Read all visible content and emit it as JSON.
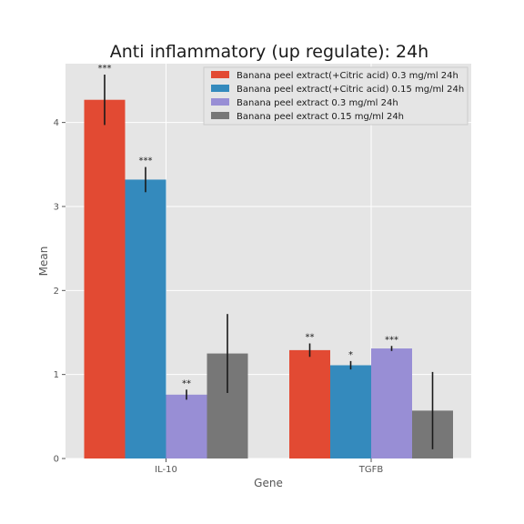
{
  "chart_data": {
    "type": "bar",
    "title": "Anti inflammatory (up regulate): 24h",
    "xlabel": "Gene",
    "ylabel": "Mean",
    "categories": [
      "IL-10",
      "TGFB"
    ],
    "ylim": [
      0,
      4.7
    ],
    "yticks": [
      0,
      1,
      2,
      3,
      4
    ],
    "grid": true,
    "legend_position": "top-right",
    "series": [
      {
        "name": "Banana peel extract(+Citric acid) 0.3 mg/ml 24h",
        "color": "#E24A33",
        "values": [
          4.27,
          1.29
        ],
        "errors": [
          0.3,
          0.08
        ],
        "significance": [
          "***",
          "**"
        ]
      },
      {
        "name": "Banana peel extract(+Citric acid) 0.15 mg/ml 24h",
        "color": "#348ABD",
        "values": [
          3.32,
          1.11
        ],
        "errors": [
          0.15,
          0.05
        ],
        "significance": [
          "***",
          "*"
        ]
      },
      {
        "name": "Banana peel extract 0.3 mg/ml 24h",
        "color": "#988ED5",
        "values": [
          0.76,
          1.31
        ],
        "errors": [
          0.06,
          0.03
        ],
        "significance": [
          "**",
          "***"
        ]
      },
      {
        "name": "Banana peel extract 0.15 mg/ml 24h",
        "color": "#777777",
        "values": [
          1.25,
          0.57
        ],
        "errors": [
          0.47,
          0.46
        ],
        "significance": [
          "",
          ""
        ]
      }
    ]
  }
}
